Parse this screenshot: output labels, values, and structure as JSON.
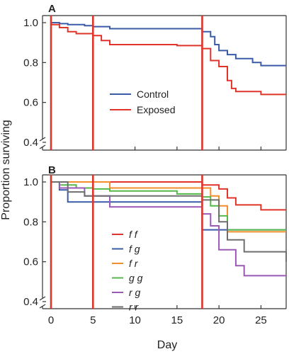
{
  "chart_data": [
    {
      "panel": "A",
      "type": "line",
      "step": true,
      "xlabel": "Day",
      "ylabel": "Proportion surviving",
      "xlim": [
        0,
        28
      ],
      "ylim": [
        0.4,
        1.02
      ],
      "xticks": [
        0,
        5,
        10,
        15,
        20,
        25
      ],
      "yticks": [
        0.4,
        0.6,
        0.8,
        1.0
      ],
      "ytick_labels": [
        "0.4",
        "0.6",
        "0.8",
        "1.0"
      ],
      "vlines": [
        0,
        5,
        18
      ],
      "legend_position": "center-left",
      "series": [
        {
          "name": "Control",
          "color": "#3a5ba8",
          "x": [
            0,
            1,
            2,
            4,
            5,
            7,
            18,
            19,
            19.5,
            20,
            21,
            22,
            24,
            25,
            28
          ],
          "y": [
            1.0,
            0.995,
            0.99,
            0.985,
            0.98,
            0.97,
            0.955,
            0.93,
            0.89,
            0.86,
            0.84,
            0.82,
            0.8,
            0.785,
            0.785
          ]
        },
        {
          "name": "Exposed",
          "color": "#e0342a",
          "x": [
            0,
            1,
            2,
            3,
            5,
            6,
            7,
            15,
            18,
            19,
            20,
            21,
            21.5,
            22,
            25,
            28
          ],
          "y": [
            0.99,
            0.975,
            0.955,
            0.945,
            0.935,
            0.91,
            0.89,
            0.885,
            0.87,
            0.81,
            0.78,
            0.71,
            0.67,
            0.655,
            0.64,
            0.64
          ]
        }
      ]
    },
    {
      "panel": "B",
      "type": "line",
      "step": true,
      "xlabel": "Day",
      "ylabel": "Proportion surviving",
      "xlim": [
        0,
        28
      ],
      "ylim": [
        0.4,
        1.02
      ],
      "xticks": [
        0,
        5,
        10,
        15,
        20,
        25
      ],
      "xtick_labels": [
        "0",
        "5",
        "10",
        "15",
        "20",
        "25"
      ],
      "yticks": [
        0.4,
        0.6,
        0.8,
        1.0
      ],
      "ytick_labels": [
        "0.4",
        "0.6",
        "0.8",
        "1.0"
      ],
      "vlines": [
        0,
        5,
        18
      ],
      "legend_position": "bottom-left",
      "series": [
        {
          "name": "f f",
          "color": "#e0342a",
          "x": [
            0,
            18,
            20,
            21,
            22,
            25,
            28
          ],
          "y": [
            1.0,
            0.985,
            0.965,
            0.92,
            0.885,
            0.86,
            0.86
          ]
        },
        {
          "name": "f g",
          "color": "#3a5ba8",
          "x": [
            0,
            1,
            2,
            18,
            20,
            28
          ],
          "y": [
            1.0,
            0.96,
            0.9,
            0.76,
            0.76,
            0.76
          ]
        },
        {
          "name": "f r",
          "color": "#f28e2b",
          "x": [
            0,
            7,
            18,
            19,
            20,
            21,
            28
          ],
          "y": [
            1.0,
            0.97,
            0.97,
            0.93,
            0.88,
            0.75,
            0.75
          ]
        },
        {
          "name": "g g",
          "color": "#55b94a",
          "x": [
            0,
            1,
            3,
            5,
            7,
            15,
            18,
            19,
            20,
            21,
            28
          ],
          "y": [
            1.0,
            0.985,
            0.97,
            0.965,
            0.955,
            0.94,
            0.925,
            0.88,
            0.83,
            0.76,
            0.76
          ]
        },
        {
          "name": "r g",
          "color": "#9b59b6",
          "x": [
            0,
            1,
            4,
            7,
            18,
            19,
            20,
            22,
            23,
            28
          ],
          "y": [
            1.0,
            0.97,
            0.93,
            0.875,
            0.84,
            0.78,
            0.66,
            0.58,
            0.53,
            0.53
          ]
        },
        {
          "name": "r r",
          "color": "#6e6e6e",
          "x": [
            0,
            2,
            4,
            18,
            20,
            21,
            23,
            28
          ],
          "y": [
            1.0,
            0.95,
            0.93,
            0.91,
            0.8,
            0.71,
            0.65,
            0.6
          ]
        }
      ]
    }
  ],
  "figure": {
    "panel_a_label": "A",
    "panel_b_label": "B",
    "xlabel": "Day",
    "ylabel": "Proportion surviving"
  }
}
